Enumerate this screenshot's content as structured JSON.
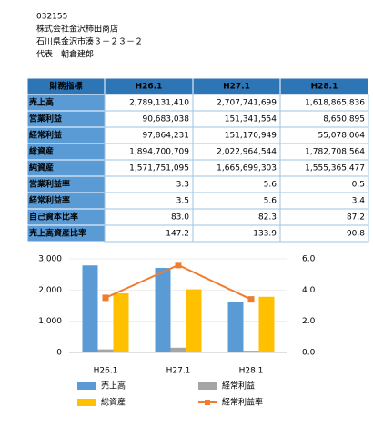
{
  "header": {
    "lines": [
      "032155",
      "株式会社金沢柿田商店",
      "石川県金沢市湊３－２３－２",
      "代表　朝倉建郎"
    ]
  },
  "table": {
    "columns": [
      "財務指標",
      "H26.1",
      "H27.1",
      "H28.1"
    ],
    "rows": [
      [
        "売上高",
        "2,789,131,410",
        "2,707,741,699",
        "1,618,865,836"
      ],
      [
        "営業利益",
        "90,683,038",
        "151,341,554",
        "8,650,895"
      ],
      [
        "経常利益",
        "97,864,231",
        "151,170,949",
        "55,078,064"
      ],
      [
        "総資産",
        "1,894,700,709",
        "2,022,964,544",
        "1,782,708,564"
      ],
      [
        "純資産",
        "1,571,751,095",
        "1,665,699,303",
        "1,555,365,477"
      ],
      [
        "営業利益率",
        "3.3",
        "5.6",
        "0.5"
      ],
      [
        "経常利益率",
        "3.5",
        "5.6",
        "3.4"
      ],
      [
        "自己資本比率",
        "83.0",
        "82.3",
        "87.2"
      ],
      [
        "売上高資産比率",
        "147.2",
        "133.9",
        "90.8"
      ]
    ]
  },
  "chart_data": {
    "type": "bar",
    "categories": [
      "H26.1",
      "H27.1",
      "H28.1"
    ],
    "series": [
      {
        "name": "売上高",
        "color": "#5b9bd5",
        "values": [
          2789,
          2708,
          1619
        ]
      },
      {
        "name": "経常利益",
        "color": "#a5a5a5",
        "values": [
          98,
          151,
          55
        ]
      },
      {
        "name": "総資産",
        "color": "#ffc000",
        "values": [
          1895,
          2023,
          1783
        ]
      },
      {
        "name": "経常利益率",
        "color": "#ed7d31",
        "type": "line",
        "axis": "y2",
        "values": [
          3.5,
          5.6,
          3.4
        ]
      }
    ],
    "ylim": [
      0,
      3000
    ],
    "yticks": [
      0,
      {
        "value": 1000,
        "label": "1,000"
      },
      {
        "value": 2000,
        "label": "2,000"
      },
      {
        "value": 3000,
        "label": "3,000"
      }
    ],
    "y2lim": [
      0,
      6
    ],
    "y2ticks": [
      {
        "value": 0,
        "label": "0.0"
      },
      {
        "value": 2,
        "label": "2.0"
      },
      {
        "value": 4,
        "label": "4.0"
      },
      {
        "value": 6,
        "label": "6.0"
      }
    ],
    "grid": true
  }
}
